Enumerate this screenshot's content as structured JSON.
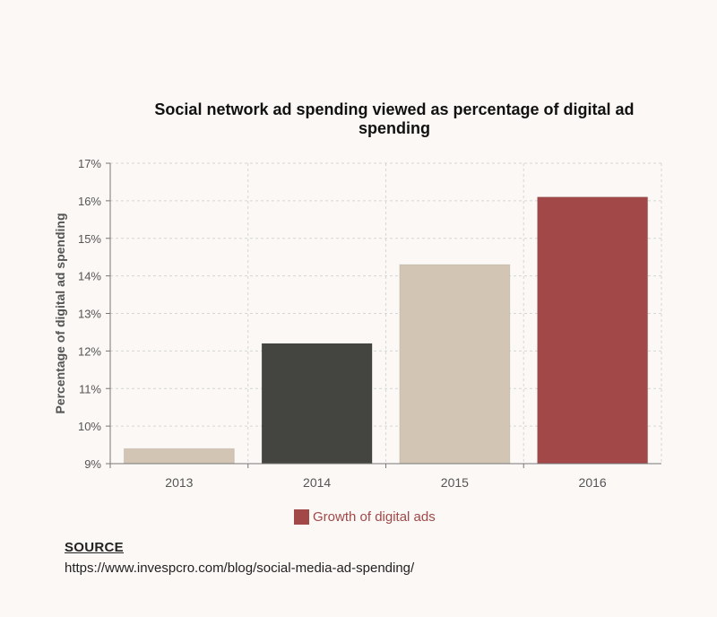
{
  "chart_data": {
    "type": "bar",
    "title": "Social network ad spending viewed as percentage of digital ad spending",
    "ylabel": "Percentage of digital ad spending",
    "xlabel": "",
    "categories": [
      "2013",
      "2014",
      "2015",
      "2016"
    ],
    "values": [
      9.4,
      12.2,
      14.3,
      16.1
    ],
    "ylim": [
      9,
      17
    ],
    "yticks": [
      "9%",
      "10%",
      "11%",
      "12%",
      "13%",
      "14%",
      "15%",
      "16%",
      "17%"
    ],
    "bar_colors": [
      "#d3c5b4",
      "#444441",
      "#d3c5b4",
      "#a24848"
    ],
    "grid": true,
    "legend": {
      "position": "bottom-center",
      "items": [
        {
          "label": "Growth of digital ads",
          "color": "#a24848"
        }
      ]
    }
  },
  "source": {
    "heading": "SOURCE",
    "url": "https://www.invespcro.com/blog/social-media-ad-spending/"
  }
}
